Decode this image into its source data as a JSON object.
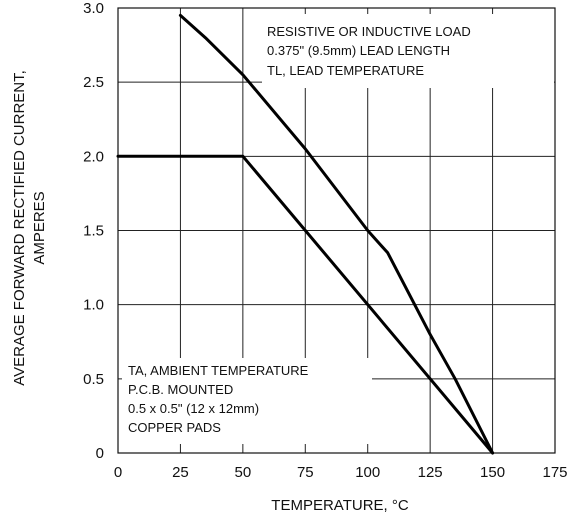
{
  "chart_data": {
    "type": "line",
    "title": "",
    "xlabel": "TEMPERATURE, °C",
    "ylabel_lines": [
      "AVERAGE FORWARD RECTIFIED CURRENT,",
      "AMPERES"
    ],
    "xlim": [
      0,
      175
    ],
    "ylim": [
      0,
      3.0
    ],
    "x_ticks": [
      0,
      25,
      50,
      75,
      100,
      125,
      150,
      175
    ],
    "y_ticks": [
      0,
      0.5,
      1.0,
      1.5,
      2.0,
      2.5,
      3.0
    ],
    "x_tick_labels": [
      "0",
      "25",
      "50",
      "75",
      "100",
      "125",
      "150",
      "175"
    ],
    "y_tick_labels": [
      "0",
      "0.5",
      "1.0",
      "1.5",
      "2.0",
      "2.5",
      "3.0"
    ],
    "grid": true,
    "series": [
      {
        "x": [
          25,
          35,
          50,
          75,
          100,
          108,
          125,
          135,
          150
        ],
        "y": [
          2.95,
          2.8,
          2.55,
          2.05,
          1.5,
          1.35,
          0.8,
          0.5,
          0
        ]
      },
      {
        "x": [
          0,
          50,
          150
        ],
        "y": [
          2.0,
          2.0,
          0
        ]
      }
    ],
    "annotations": {
      "top": [
        "RESISTIVE OR INDUCTIVE LOAD",
        "0.375\" (9.5mm) LEAD LENGTH",
        "TL, LEAD TEMPERATURE"
      ],
      "bottom": [
        "TA, AMBIENT TEMPERATURE",
        "P.C.B. MOUNTED",
        "0.5 x 0.5\" (12 x 12mm)",
        "COPPER PADS"
      ]
    }
  }
}
